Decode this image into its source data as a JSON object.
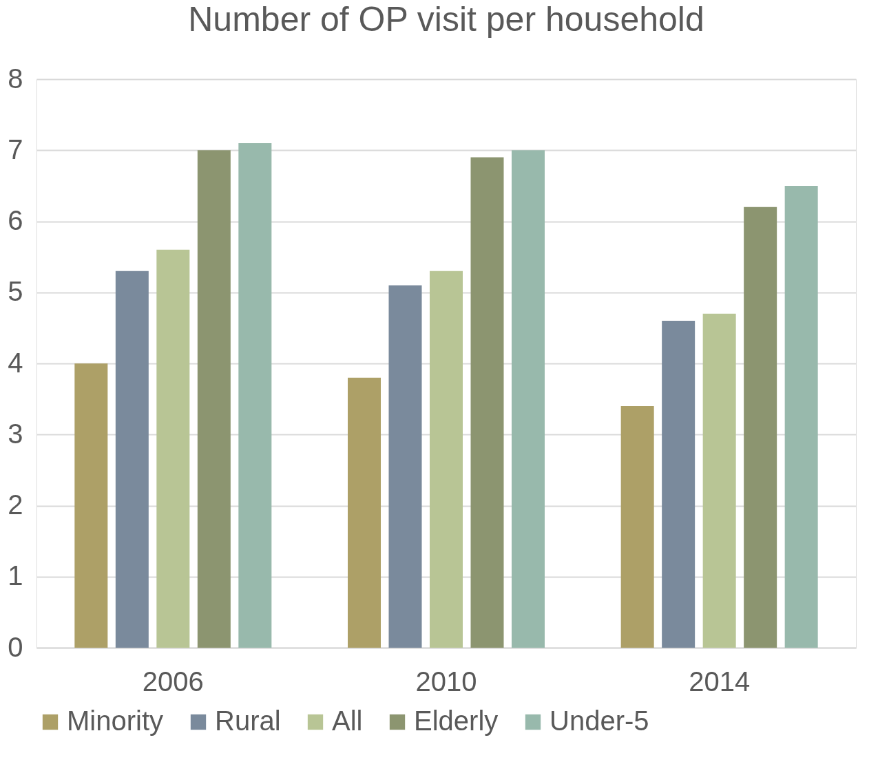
{
  "chart_data": {
    "type": "bar",
    "title": "Number of OP visit per household",
    "categories": [
      "2006",
      "2010",
      "2014"
    ],
    "series": [
      {
        "name": "Minority",
        "color": "#ada067",
        "values": [
          4.0,
          3.8,
          3.4
        ]
      },
      {
        "name": "Rural",
        "color": "#7a8a9c",
        "values": [
          5.3,
          5.1,
          4.6
        ]
      },
      {
        "name": "All",
        "color": "#b8c595",
        "values": [
          5.6,
          5.3,
          4.7
        ]
      },
      {
        "name": "Elderly",
        "color": "#8c9570",
        "values": [
          7.0,
          6.9,
          6.2
        ]
      },
      {
        "name": "Under-5",
        "color": "#98b9ac",
        "values": [
          7.1,
          7.0,
          6.5
        ]
      }
    ],
    "ylim": [
      0,
      8
    ],
    "yticks": [
      0,
      1,
      2,
      3,
      4,
      5,
      6,
      7,
      8
    ],
    "grid": "y",
    "legend": "bottom"
  }
}
